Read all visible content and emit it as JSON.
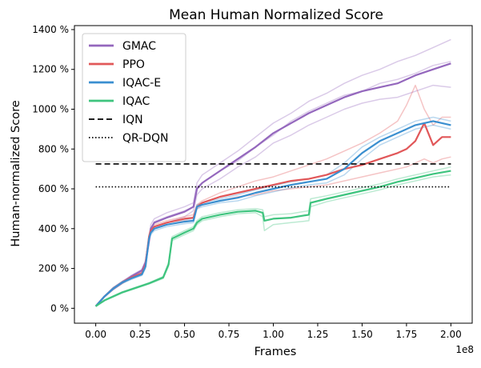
{
  "chart_data": {
    "type": "line",
    "title": "Mean Human Normalized Score",
    "xlabel": "Frames",
    "ylabel": "Human-normalized Score",
    "x_offset_label": "1e8",
    "xlim": [
      -0.12,
      2.12
    ],
    "ylim": [
      -0.75,
      14.2
    ],
    "xticks": [
      0,
      0.25,
      0.5,
      0.75,
      1.0,
      1.25,
      1.5,
      1.75,
      2.0
    ],
    "xtick_labels": [
      "0.00",
      "0.25",
      "0.50",
      "0.75",
      "1.00",
      "1.25",
      "1.50",
      "1.75",
      "2.00"
    ],
    "yticks": [
      0,
      2,
      4,
      6,
      8,
      10,
      12,
      14
    ],
    "ytick_labels": [
      "0 %",
      "200 %",
      "400 %",
      "600 %",
      "800 %",
      "1000 %",
      "1200 %",
      "1400 %"
    ],
    "grid": false,
    "legend_position": "top-left",
    "series": [
      {
        "name": "GMAC",
        "color": "#9467bd",
        "style": "solid",
        "x": [
          0,
          0.05,
          0.1,
          0.15,
          0.2,
          0.26,
          0.28,
          0.3,
          0.31,
          0.33,
          0.4,
          0.5,
          0.55,
          0.57,
          0.6,
          0.7,
          0.8,
          0.9,
          1.0,
          1.1,
          1.2,
          1.3,
          1.4,
          1.5,
          1.6,
          1.7,
          1.8,
          1.9,
          2.0
        ],
        "values": [
          0.1,
          0.6,
          1.0,
          1.3,
          1.6,
          1.9,
          2.3,
          3.4,
          4.0,
          4.3,
          4.55,
          4.85,
          5.1,
          6.0,
          6.3,
          6.9,
          7.5,
          8.1,
          8.8,
          9.3,
          9.8,
          10.2,
          10.6,
          10.9,
          11.1,
          11.3,
          11.7,
          12.0,
          12.3
        ],
        "runs": [
          {
            "x": [
              0,
              0.05,
              0.1,
              0.15,
              0.2,
              0.26,
              0.28,
              0.3,
              0.31,
              0.33,
              0.4,
              0.5,
              0.55,
              0.57,
              0.6,
              0.7,
              0.8,
              0.9,
              1.0,
              1.1,
              1.2,
              1.3,
              1.4,
              1.5,
              1.6,
              1.7,
              1.8,
              1.9,
              2.0
            ],
            "values": [
              0.1,
              0.62,
              1.05,
              1.35,
              1.65,
              1.95,
              2.4,
              3.6,
              4.2,
              4.5,
              4.8,
              5.1,
              5.3,
              6.3,
              6.7,
              7.3,
              7.9,
              8.6,
              9.3,
              9.8,
              10.4,
              10.8,
              11.3,
              11.7,
              12.0,
              12.4,
              12.7,
              13.1,
              13.5
            ]
          },
          {
            "x": [
              0,
              0.05,
              0.1,
              0.15,
              0.2,
              0.26,
              0.28,
              0.3,
              0.31,
              0.33,
              0.4,
              0.5,
              0.55,
              0.57,
              0.6,
              0.7,
              0.8,
              0.9,
              1.0,
              1.1,
              1.2,
              1.3,
              1.4,
              1.5,
              1.6,
              1.7,
              1.8,
              1.9,
              2.0
            ],
            "values": [
              0.1,
              0.58,
              0.95,
              1.25,
              1.55,
              1.85,
              2.2,
              3.2,
              3.8,
              4.1,
              4.3,
              4.6,
              4.9,
              5.7,
              6.0,
              6.5,
              7.1,
              7.6,
              8.3,
              8.7,
              9.2,
              9.6,
              10.0,
              10.3,
              10.5,
              10.6,
              10.9,
              11.2,
              11.1
            ]
          },
          {
            "x": [
              0,
              0.05,
              0.1,
              0.15,
              0.2,
              0.26,
              0.28,
              0.3,
              0.31,
              0.33,
              0.4,
              0.5,
              0.55,
              0.57,
              0.6,
              0.7,
              0.8,
              0.9,
              1.0,
              1.1,
              1.2,
              1.3,
              1.4,
              1.5,
              1.6,
              1.7,
              1.8,
              1.9,
              2.0
            ],
            "values": [
              0.1,
              0.6,
              1.0,
              1.3,
              1.6,
              1.9,
              2.3,
              3.5,
              4.0,
              4.35,
              4.6,
              4.9,
              5.1,
              6.1,
              6.3,
              6.9,
              7.4,
              8.1,
              8.7,
              9.4,
              9.9,
              10.3,
              10.7,
              10.9,
              11.3,
              11.5,
              11.8,
              12.2,
              12.4
            ]
          }
        ]
      },
      {
        "name": "PPO",
        "color": "#e15759",
        "style": "solid",
        "x": [
          0,
          0.05,
          0.1,
          0.15,
          0.2,
          0.26,
          0.28,
          0.3,
          0.31,
          0.33,
          0.4,
          0.5,
          0.55,
          0.57,
          0.6,
          0.7,
          0.8,
          0.9,
          1.0,
          1.1,
          1.2,
          1.3,
          1.4,
          1.5,
          1.6,
          1.7,
          1.75,
          1.8,
          1.85,
          1.9,
          1.95,
          2.0
        ],
        "values": [
          0.1,
          0.6,
          1.0,
          1.3,
          1.55,
          1.75,
          2.2,
          3.6,
          3.9,
          4.1,
          4.3,
          4.5,
          4.55,
          5.1,
          5.3,
          5.6,
          5.8,
          6.0,
          6.2,
          6.4,
          6.5,
          6.7,
          7.0,
          7.2,
          7.5,
          7.8,
          8.0,
          8.4,
          9.3,
          8.2,
          8.6,
          8.6
        ],
        "runs": [
          {
            "x": [
              0,
              0.05,
              0.1,
              0.15,
              0.2,
              0.26,
              0.28,
              0.3,
              0.31,
              0.33,
              0.4,
              0.5,
              0.55,
              0.57,
              0.6,
              0.7,
              0.8,
              0.9,
              1.0,
              1.1,
              1.2,
              1.3,
              1.4,
              1.5,
              1.6,
              1.7,
              1.75,
              1.8,
              1.85,
              1.9,
              1.95,
              2.0
            ],
            "values": [
              0.1,
              0.62,
              1.05,
              1.35,
              1.6,
              1.8,
              2.3,
              3.7,
              4.0,
              4.2,
              4.4,
              4.6,
              4.7,
              5.2,
              5.4,
              5.8,
              6.1,
              6.4,
              6.6,
              6.9,
              7.2,
              7.5,
              7.9,
              8.3,
              8.8,
              9.4,
              10.2,
              11.2,
              10.0,
              9.2,
              9.6,
              9.6
            ]
          },
          {
            "x": [
              0,
              0.05,
              0.1,
              0.15,
              0.2,
              0.26,
              0.28,
              0.3,
              0.31,
              0.33,
              0.4,
              0.5,
              0.55,
              0.57,
              0.6,
              0.7,
              0.8,
              0.9,
              1.0,
              1.1,
              1.2,
              1.3,
              1.4,
              1.5,
              1.6,
              1.7,
              1.75,
              1.8,
              1.85,
              1.9,
              1.95,
              2.0
            ],
            "values": [
              0.1,
              0.58,
              0.95,
              1.25,
              1.5,
              1.7,
              2.1,
              3.5,
              3.8,
              4.0,
              4.2,
              4.4,
              4.4,
              5.0,
              5.2,
              5.4,
              5.6,
              5.7,
              5.9,
              6.0,
              6.1,
              6.2,
              6.4,
              6.6,
              6.8,
              7.0,
              7.1,
              7.3,
              7.5,
              7.3,
              7.5,
              7.6
            ]
          }
        ]
      },
      {
        "name": "IQAC-E",
        "color": "#3a8fd0",
        "style": "solid",
        "x": [
          0,
          0.05,
          0.1,
          0.15,
          0.2,
          0.26,
          0.28,
          0.3,
          0.31,
          0.33,
          0.4,
          0.5,
          0.55,
          0.57,
          0.6,
          0.7,
          0.8,
          0.9,
          1.0,
          1.1,
          1.2,
          1.3,
          1.4,
          1.5,
          1.6,
          1.7,
          1.8,
          1.9,
          2.0
        ],
        "values": [
          0.1,
          0.6,
          1.0,
          1.3,
          1.5,
          1.7,
          2.1,
          3.5,
          3.8,
          4.0,
          4.2,
          4.35,
          4.4,
          5.1,
          5.2,
          5.4,
          5.55,
          5.8,
          6.0,
          6.2,
          6.35,
          6.5,
          7.0,
          7.8,
          8.4,
          8.8,
          9.2,
          9.4,
          9.2
        ],
        "runs": [
          {
            "x": [
              0,
              0.05,
              0.1,
              0.15,
              0.2,
              0.26,
              0.28,
              0.3,
              0.31,
              0.33,
              0.4,
              0.5,
              0.55,
              0.57,
              0.6,
              0.7,
              0.8,
              0.9,
              1.0,
              1.1,
              1.2,
              1.3,
              1.4,
              1.5,
              1.6,
              1.7,
              1.8,
              1.9,
              2.0
            ],
            "values": [
              0.1,
              0.62,
              1.05,
              1.35,
              1.55,
              1.75,
              2.2,
              3.6,
              3.9,
              4.1,
              4.3,
              4.45,
              4.5,
              5.2,
              5.3,
              5.5,
              5.7,
              5.95,
              6.15,
              6.35,
              6.5,
              6.7,
              7.3,
              8.1,
              8.6,
              9.0,
              9.4,
              9.6,
              9.4
            ]
          },
          {
            "x": [
              0,
              0.05,
              0.1,
              0.15,
              0.2,
              0.26,
              0.28,
              0.3,
              0.31,
              0.33,
              0.4,
              0.5,
              0.55,
              0.57,
              0.6,
              0.7,
              0.8,
              0.9,
              1.0,
              1.1,
              1.2,
              1.3,
              1.4,
              1.5,
              1.6,
              1.7,
              1.8,
              1.9,
              2.0
            ],
            "values": [
              0.1,
              0.58,
              0.95,
              1.25,
              1.45,
              1.65,
              2.0,
              3.4,
              3.7,
              3.9,
              4.1,
              4.25,
              4.3,
              5.0,
              5.1,
              5.3,
              5.4,
              5.65,
              5.85,
              6.05,
              6.2,
              6.3,
              6.7,
              7.5,
              8.2,
              8.6,
              9.0,
              9.2,
              9.0
            ]
          }
        ]
      },
      {
        "name": "IQAC",
        "color": "#3ec47e",
        "style": "solid",
        "x": [
          0,
          0.05,
          0.1,
          0.15,
          0.2,
          0.3,
          0.38,
          0.41,
          0.43,
          0.5,
          0.55,
          0.57,
          0.6,
          0.7,
          0.8,
          0.9,
          0.94,
          0.95,
          1.0,
          1.1,
          1.2,
          1.21,
          1.3,
          1.4,
          1.5,
          1.6,
          1.7,
          1.8,
          1.9,
          2.0
        ],
        "values": [
          0.1,
          0.4,
          0.6,
          0.8,
          0.95,
          1.25,
          1.55,
          2.2,
          3.5,
          3.8,
          4.0,
          4.3,
          4.5,
          4.7,
          4.85,
          4.9,
          4.8,
          4.4,
          4.5,
          4.55,
          4.7,
          5.3,
          5.5,
          5.7,
          5.9,
          6.1,
          6.35,
          6.55,
          6.75,
          6.9
        ],
        "runs": [
          {
            "x": [
              0,
              0.05,
              0.1,
              0.15,
              0.2,
              0.3,
              0.38,
              0.41,
              0.43,
              0.5,
              0.55,
              0.57,
              0.6,
              0.7,
              0.8,
              0.9,
              0.94,
              0.95,
              1.0,
              1.1,
              1.2,
              1.21,
              1.3,
              1.4,
              1.5,
              1.6,
              1.7,
              1.8,
              1.9,
              2.0
            ],
            "values": [
              0.1,
              0.42,
              0.63,
              0.83,
              0.98,
              1.28,
              1.6,
              2.3,
              3.6,
              3.9,
              4.1,
              4.4,
              4.6,
              4.8,
              4.95,
              5.0,
              4.95,
              4.6,
              4.7,
              4.75,
              4.9,
              5.5,
              5.65,
              5.85,
              6.05,
              6.25,
              6.5,
              6.7,
              6.9,
              7.1
            ]
          },
          {
            "x": [
              0,
              0.05,
              0.1,
              0.15,
              0.2,
              0.3,
              0.38,
              0.41,
              0.43,
              0.5,
              0.55,
              0.57,
              0.6,
              0.7,
              0.8,
              0.9,
              0.94,
              0.95,
              1.0,
              1.1,
              1.2,
              1.21,
              1.3,
              1.4,
              1.5,
              1.6,
              1.7,
              1.8,
              1.9,
              2.0
            ],
            "values": [
              0.1,
              0.38,
              0.57,
              0.77,
              0.92,
              1.22,
              1.5,
              2.1,
              3.4,
              3.7,
              3.9,
              4.2,
              4.4,
              4.6,
              4.75,
              4.8,
              4.6,
              3.9,
              4.2,
              4.3,
              4.4,
              5.1,
              5.35,
              5.55,
              5.75,
              5.95,
              6.2,
              6.4,
              6.6,
              6.7
            ]
          }
        ]
      },
      {
        "name": "IQN",
        "color": "#000000",
        "style": "dashed",
        "x": [
          0,
          2.0
        ],
        "values": [
          7.25,
          7.25
        ]
      },
      {
        "name": "QR-DQN",
        "color": "#000000",
        "style": "dotted",
        "x": [
          0,
          2.0
        ],
        "values": [
          6.1,
          6.1
        ]
      }
    ]
  }
}
